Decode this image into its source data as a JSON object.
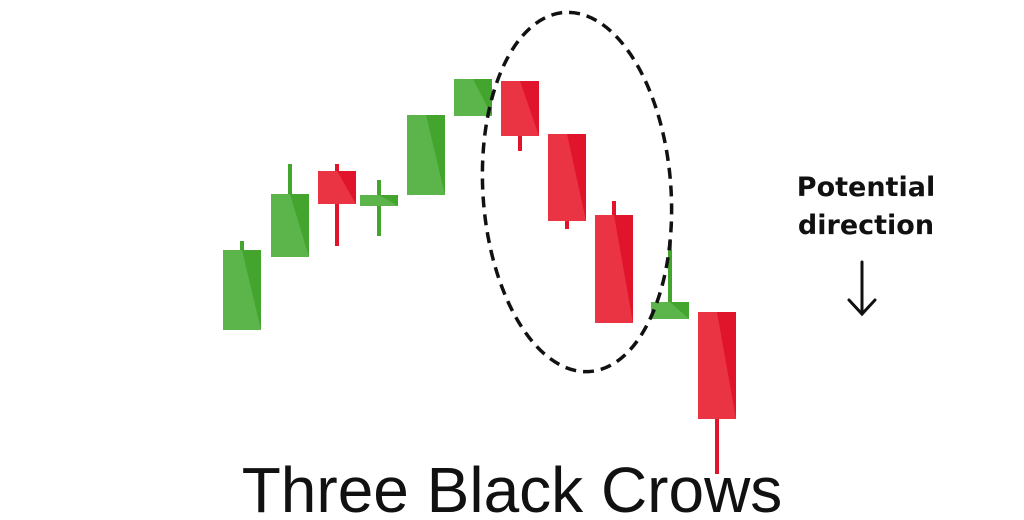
{
  "title": "Three Black Crows",
  "annotation": {
    "label": "Potential direction"
  }
}
